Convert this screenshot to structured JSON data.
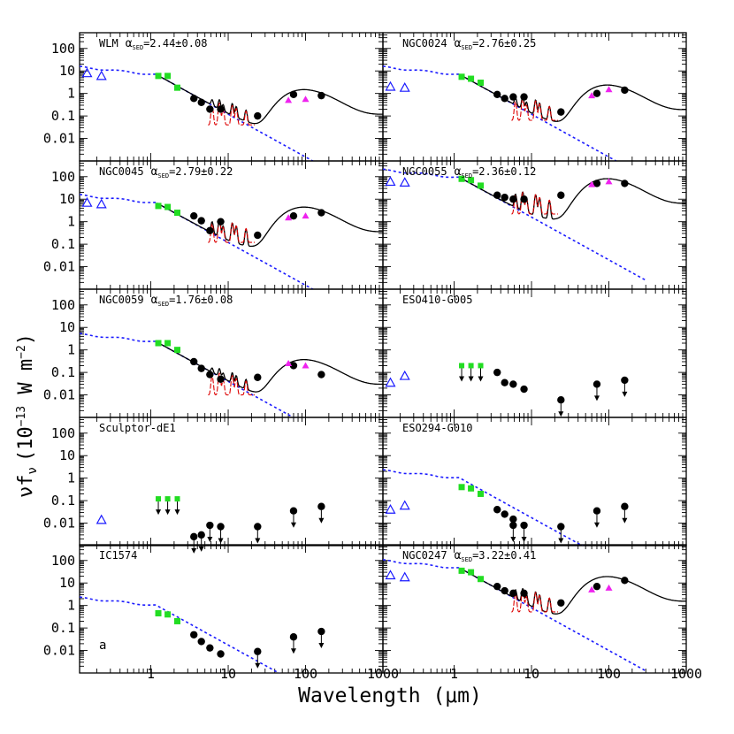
{
  "figure": {
    "ylabel": "νf",
    "ylabel_sub": "ν",
    "ylabel_units": "(10",
    "ylabel_exp": "−13",
    "ylabel_units2": " W m",
    "ylabel_exp2": "−2",
    "ylabel_close": ")",
    "xlabel": "Wavelength (μm)"
  },
  "colors": {
    "stellar": "#1a1aff",
    "nir": "#22dd22",
    "iras": "#ee22ee",
    "pah": "#dd0000",
    "model": "#000000"
  },
  "chart_data": [
    {
      "type": "scatter",
      "panel": "WLM",
      "title": "WLM",
      "alpha_label": "α",
      "alpha_sub": "SED",
      "alpha_value": "=2.44±0.08",
      "xscale": "log",
      "yscale": "log",
      "xlim": [
        0.12,
        1000
      ],
      "ylim": [
        0.001,
        500
      ],
      "model": true,
      "series": [
        {
          "kind": "uv",
          "x": [
            0.15,
            0.23
          ],
          "y": [
            8,
            6
          ]
        },
        {
          "kind": "nir",
          "x": [
            1.25,
            1.65,
            2.2
          ],
          "y": [
            6,
            6,
            1.8
          ]
        },
        {
          "kind": "mips",
          "x": [
            3.6,
            4.5,
            5.8,
            8,
            24,
            70,
            160
          ],
          "y": [
            0.6,
            0.4,
            0.2,
            0.2,
            0.1,
            0.9,
            0.8
          ]
        },
        {
          "kind": "iras",
          "x": [
            60,
            100
          ],
          "y": [
            0.5,
            0.55
          ]
        }
      ],
      "model_params": {
        "star": 15,
        "dust": 1.0
      }
    },
    {
      "type": "scatter",
      "panel": "NGC0024",
      "title": "NGC0024",
      "alpha_label": "α",
      "alpha_sub": "SED",
      "alpha_value": "=2.76±0.25",
      "xscale": "log",
      "yscale": "log",
      "xlim": [
        0.12,
        1000
      ],
      "ylim": [
        0.001,
        500
      ],
      "model": true,
      "series": [
        {
          "kind": "uv",
          "x": [
            0.15,
            0.23
          ],
          "y": [
            2,
            1.8
          ]
        },
        {
          "kind": "nir",
          "x": [
            1.25,
            1.65,
            2.2
          ],
          "y": [
            5.5,
            4.5,
            3
          ]
        },
        {
          "kind": "mips",
          "x": [
            3.6,
            4.5,
            5.8,
            8,
            24,
            70,
            160
          ],
          "y": [
            0.9,
            0.6,
            0.7,
            0.7,
            0.15,
            1,
            1.4
          ]
        },
        {
          "kind": "iras",
          "x": [
            60,
            100
          ],
          "y": [
            0.8,
            1.5
          ]
        }
      ],
      "model_params": {
        "star": 15,
        "dust": 1.6
      }
    },
    {
      "type": "scatter",
      "panel": "NGC0045",
      "title": "NGC0045",
      "alpha_label": "α",
      "alpha_sub": "SED",
      "alpha_value": "=2.79±0.22",
      "xscale": "log",
      "yscale": "log",
      "xlim": [
        0.12,
        1000
      ],
      "ylim": [
        0.001,
        500
      ],
      "model": true,
      "series": [
        {
          "kind": "uv",
          "x": [
            0.15,
            0.23
          ],
          "y": [
            7,
            6
          ]
        },
        {
          "kind": "nir",
          "x": [
            1.25,
            1.65,
            2.2
          ],
          "y": [
            5,
            4.5,
            2.5
          ]
        },
        {
          "kind": "mips",
          "x": [
            3.6,
            4.5,
            5.8,
            8,
            24,
            70,
            160
          ],
          "y": [
            1.8,
            1.1,
            0.4,
            1,
            0.25,
            1.8,
            2.5
          ]
        },
        {
          "kind": "iras",
          "x": [
            60,
            100
          ],
          "y": [
            1.5,
            1.8
          ]
        }
      ],
      "model_params": {
        "star": 15,
        "dust": 3.0
      }
    },
    {
      "type": "scatter",
      "panel": "NGC0055",
      "title": "NGC0055",
      "alpha_label": "α",
      "alpha_sub": "SED",
      "alpha_value": "=2.36±0.12",
      "xscale": "log",
      "yscale": "log",
      "xlim": [
        0.12,
        1000
      ],
      "ylim": [
        0.001,
        500
      ],
      "model": true,
      "series": [
        {
          "kind": "uv",
          "x": [
            0.15,
            0.23
          ],
          "y": [
            60,
            55
          ]
        },
        {
          "kind": "nir",
          "x": [
            1.25,
            1.65,
            2.2
          ],
          "y": [
            80,
            70,
            40
          ]
        },
        {
          "kind": "mips",
          "x": [
            3.6,
            4.5,
            5.8,
            8,
            24,
            70,
            160
          ],
          "y": [
            15,
            12,
            10,
            10,
            15,
            50,
            50
          ]
        },
        {
          "kind": "iras",
          "x": [
            60,
            100
          ],
          "y": [
            45,
            60
          ]
        }
      ],
      "model_params": {
        "star": 200,
        "dust": 55
      }
    },
    {
      "type": "scatter",
      "panel": "NGC0059",
      "title": "NGC0059",
      "alpha_label": "α",
      "alpha_sub": "SED",
      "alpha_value": "=1.76±0.08",
      "xscale": "log",
      "yscale": "log",
      "xlim": [
        0.12,
        1000
      ],
      "ylim": [
        0.001,
        500
      ],
      "model": true,
      "series": [
        {
          "kind": "nir",
          "x": [
            1.25,
            1.65,
            2.2
          ],
          "y": [
            2,
            2,
            1
          ]
        },
        {
          "kind": "mips",
          "x": [
            3.6,
            4.5,
            5.8,
            8,
            24,
            70,
            160
          ],
          "y": [
            0.3,
            0.15,
            0.08,
            0.05,
            0.06,
            0.2,
            0.08
          ]
        },
        {
          "kind": "iras",
          "x": [
            60,
            100
          ],
          "y": [
            0.25,
            0.2
          ]
        }
      ],
      "model_params": {
        "star": 5,
        "dust": 0.25
      }
    },
    {
      "type": "scatter",
      "panel": "ESO410-G005",
      "title": "ESO410-G005",
      "xscale": "log",
      "yscale": "log",
      "xlim": [
        0.12,
        1000
      ],
      "ylim": [
        0.001,
        500
      ],
      "model": false,
      "series": [
        {
          "kind": "uv",
          "x": [
            0.15,
            0.23
          ],
          "y": [
            0.035,
            0.07
          ]
        },
        {
          "kind": "nir_limit",
          "x": [
            1.25,
            1.65,
            2.2
          ],
          "y": [
            0.2,
            0.2,
            0.2
          ]
        },
        {
          "kind": "mips",
          "x": [
            3.6,
            4.5,
            5.8,
            8
          ],
          "y": [
            0.1,
            0.035,
            0.03,
            0.018
          ]
        },
        {
          "kind": "mips_limit",
          "x": [
            24,
            70,
            160
          ],
          "y": [
            0.006,
            0.03,
            0.045
          ]
        }
      ]
    },
    {
      "type": "scatter",
      "panel": "Sculptor-dE1",
      "title": "Sculptor-dE1",
      "xscale": "log",
      "yscale": "log",
      "xlim": [
        0.12,
        1000
      ],
      "ylim": [
        0.001,
        500
      ],
      "model": false,
      "series": [
        {
          "kind": "uv",
          "x": [
            0.23
          ],
          "y": [
            0.014
          ]
        },
        {
          "kind": "nir_limit",
          "x": [
            1.25,
            1.65,
            2.2
          ],
          "y": [
            0.12,
            0.12,
            0.12
          ]
        },
        {
          "kind": "mips_limit",
          "x": [
            3.6,
            4.5,
            5.8,
            8,
            24,
            70,
            160
          ],
          "y": [
            0.0025,
            0.003,
            0.008,
            0.007,
            0.007,
            0.035,
            0.055
          ]
        }
      ]
    },
    {
      "type": "scatter",
      "panel": "ESO294-G010",
      "title": "ESO294-G010",
      "xscale": "log",
      "yscale": "log",
      "xlim": [
        0.12,
        1000
      ],
      "ylim": [
        0.001,
        500
      ],
      "model": false,
      "series": [
        {
          "kind": "uv",
          "x": [
            0.15,
            0.23
          ],
          "y": [
            0.04,
            0.06
          ]
        },
        {
          "kind": "nir",
          "x": [
            1.25,
            1.65,
            2.2
          ],
          "y": [
            0.4,
            0.35,
            0.2
          ]
        },
        {
          "kind": "mips",
          "x": [
            3.6,
            4.5,
            5.8
          ],
          "y": [
            0.04,
            0.025,
            0.015
          ]
        },
        {
          "kind": "mips_limit",
          "x": [
            5.8,
            8,
            24,
            70,
            160
          ],
          "y": [
            0.008,
            0.008,
            0.007,
            0.035,
            0.055
          ]
        }
      ],
      "stellar_only": {
        "star": 2.2
      }
    },
    {
      "type": "scatter",
      "panel": "IC1574",
      "title": "IC1574",
      "annotation": "a",
      "xscale": "log",
      "yscale": "log",
      "xlim": [
        0.12,
        1000
      ],
      "ylim": [
        0.001,
        500
      ],
      "model": false,
      "series": [
        {
          "kind": "nir",
          "x": [
            1.25,
            1.65,
            2.2
          ],
          "y": [
            0.45,
            0.4,
            0.2
          ]
        },
        {
          "kind": "mips",
          "x": [
            3.6,
            4.5,
            5.8,
            8
          ],
          "y": [
            0.05,
            0.025,
            0.013,
            0.007
          ]
        },
        {
          "kind": "mips_limit",
          "x": [
            24,
            70,
            160
          ],
          "y": [
            0.009,
            0.04,
            0.07
          ]
        }
      ],
      "stellar_only": {
        "star": 2.2
      }
    },
    {
      "type": "scatter",
      "panel": "NGC0247",
      "title": "NGC0247",
      "alpha_label": "α",
      "alpha_sub": "SED",
      "alpha_value": "=3.22±0.41",
      "xscale": "log",
      "yscale": "log",
      "xlim": [
        0.12,
        1000
      ],
      "ylim": [
        0.001,
        500
      ],
      "model": true,
      "series": [
        {
          "kind": "uv",
          "x": [
            0.15,
            0.23
          ],
          "y": [
            22,
            18
          ]
        },
        {
          "kind": "nir",
          "x": [
            1.25,
            1.65,
            2.2
          ],
          "y": [
            35,
            30,
            15
          ]
        },
        {
          "kind": "mips",
          "x": [
            3.6,
            4.5,
            5.8,
            8,
            24,
            70,
            160
          ],
          "y": [
            7,
            4.5,
            3.5,
            3.5,
            1.3,
            7,
            13
          ]
        },
        {
          "kind": "iras",
          "x": [
            60,
            100
          ],
          "y": [
            5,
            6
          ]
        }
      ],
      "model_params": {
        "star": 100,
        "dust": 13
      }
    }
  ],
  "axes": {
    "y_tick_labels": [
      "100",
      "10",
      "1",
      "0.1",
      "0.01"
    ],
    "y_tick_values": [
      100,
      10,
      1,
      0.1,
      0.01
    ],
    "x_tick_labels": [
      "1",
      "10",
      "100",
      "1000"
    ],
    "x_tick_values": [
      1,
      10,
      100,
      1000
    ]
  }
}
